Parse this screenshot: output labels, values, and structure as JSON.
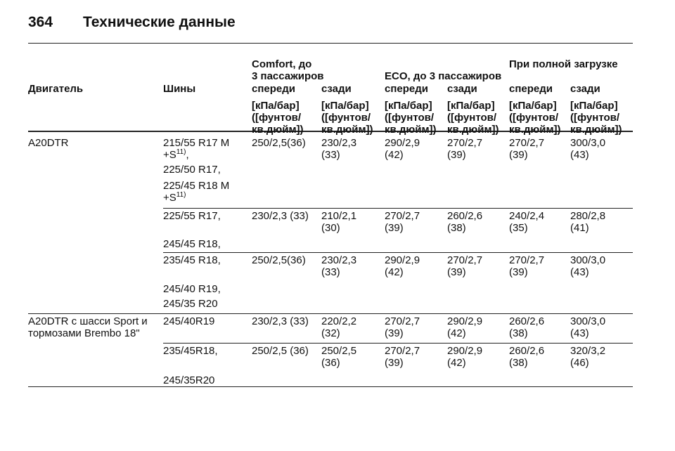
{
  "header": {
    "page_number": "364",
    "title": "Технические данные"
  },
  "table": {
    "groups": [
      "Comfort, до\n3 пассажиров",
      "ECO, до 3 пассажиров",
      "При полной загрузке"
    ],
    "columns": [
      "Двигатель",
      "Шины",
      "спереди",
      "сзади",
      "спереди",
      "сзади",
      "спереди",
      "сзади"
    ],
    "units": [
      "[кПа/бар]\n([фунтов/\nкв.дюйм])",
      "[кПа/бар]\n([фунтов/\nкв.дюйм])",
      "[кПа/бар]\n([фунтов/\nкв.дюйм])",
      "[кПа/бар]\n([фунтов/\nкв.дюйм])",
      "[кПа/бар]\n([фунтов/\nкв.дюйм])",
      "[кПа/бар]\n([фунтов/\nкв.дюйм])"
    ],
    "rows": [
      {
        "engine": "A20DTR",
        "tires": [
          {
            "text": "215/55 R17 M\n+S",
            "note": "11)",
            "suffix": ","
          },
          {
            "text": "225/50 R17,"
          },
          {
            "text": "225/45 R18 M\n+S",
            "note": "11)"
          }
        ],
        "values": [
          "250/2,5(36)",
          "230/2,3\n(33)",
          "290/2,9\n(42)",
          "270/2,7\n(39)",
          "270/2,7\n(39)",
          "300/3,0\n(43)"
        ]
      },
      {
        "tires": [
          {
            "text": "225/55 R17,"
          },
          {
            "text": "245/45 R18,"
          }
        ],
        "values": [
          "230/2,3 (33)",
          "210/2,1\n(30)",
          "270/2,7\n(39)",
          "260/2,6\n(38)",
          "240/2,4\n(35)",
          "280/2,8\n(41)"
        ]
      },
      {
        "tires": [
          {
            "text": "235/45 R18,"
          },
          {
            "text": "245/40 R19,"
          },
          {
            "text": "245/35 R20"
          }
        ],
        "values": [
          "250/2,5(36)",
          "230/2,3\n(33)",
          "290/2,9\n(42)",
          "270/2,7\n(39)",
          "270/2,7\n(39)",
          "300/3,0\n(43)"
        ]
      },
      {
        "engine": "A20DTR с шасси Sport и\nтормозами Brembo 18\"",
        "tires": [
          {
            "text": "245/40R19"
          }
        ],
        "values": [
          "230/2,3 (33)",
          "220/2,2\n(32)",
          "270/2,7\n(39)",
          "290/2,9\n(42)",
          "260/2,6\n(38)",
          "300/3,0\n(43)"
        ]
      },
      {
        "tires": [
          {
            "text": "235/45R18,"
          },
          {
            "text": "245/35R20"
          }
        ],
        "values": [
          "250/2,5 (36)",
          "250/2,5\n(36)",
          "270/2,7\n(39)",
          "290/2,9\n(42)",
          "260/2,6\n(38)",
          "320/3,2\n(46)"
        ]
      }
    ]
  }
}
